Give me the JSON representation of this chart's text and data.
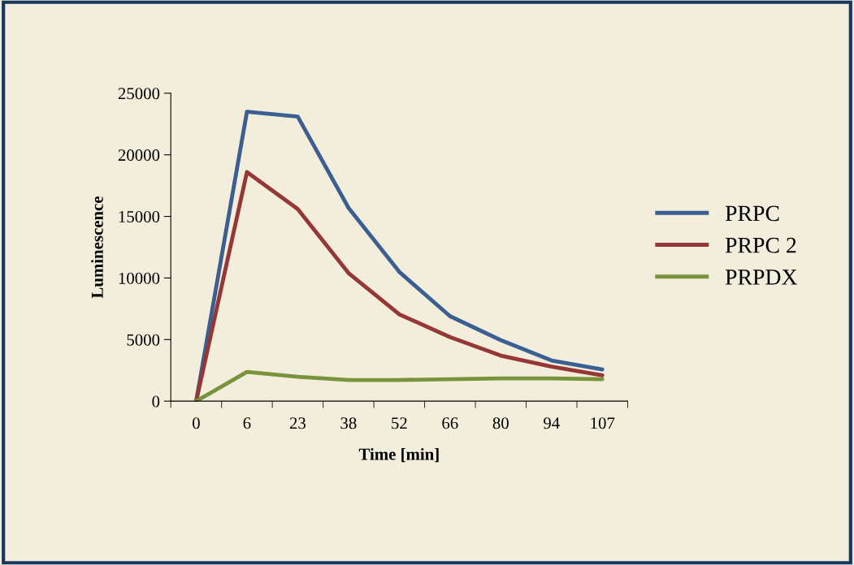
{
  "chart_data": {
    "type": "line",
    "xlabel": "Time [min]",
    "ylabel": "Luminescence",
    "categories": [
      "0",
      "6",
      "23",
      "38",
      "52",
      "66",
      "80",
      "94",
      "107"
    ],
    "series": [
      {
        "name": "PRPC",
        "color": "#3b5f93",
        "values": [
          0,
          23500,
          23100,
          15700,
          10500,
          6900,
          4950,
          3300,
          2570
        ]
      },
      {
        "name": "PRPC 2",
        "color": "#953735",
        "values": [
          0,
          18600,
          15600,
          10400,
          7050,
          5200,
          3700,
          2800,
          2100
        ]
      },
      {
        "name": "PRPDX",
        "color": "#77933c",
        "values": [
          0,
          2370,
          1980,
          1720,
          1720,
          1780,
          1850,
          1850,
          1780
        ]
      }
    ],
    "ylim": [
      0,
      25000
    ],
    "yticks": [
      0,
      5000,
      10000,
      15000,
      20000,
      25000
    ],
    "grid": false,
    "legend": "right",
    "marker": "none",
    "line_style": "solid"
  }
}
